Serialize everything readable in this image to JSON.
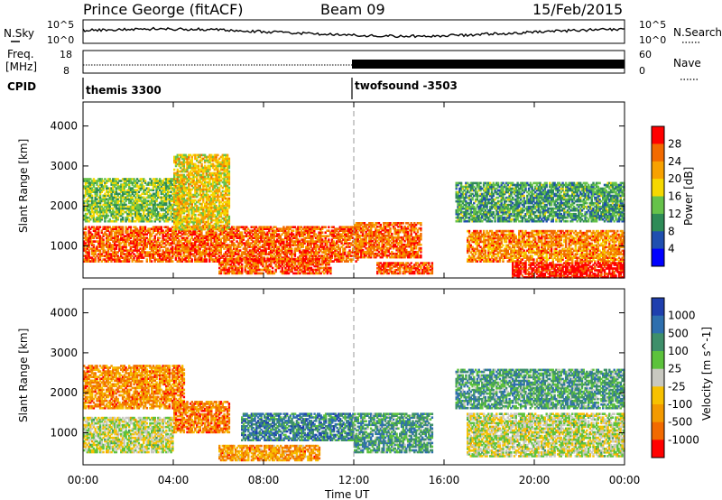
{
  "header": {
    "station": "Prince George (fitACF)",
    "beam": "Beam 09",
    "date": "15/Feb/2015"
  },
  "noise_panel": {
    "left_label": "N.Sky",
    "right_label": "N.Search",
    "y_ticks": [
      "10^5",
      "10^0"
    ],
    "y_ticks_right": [
      "10^5",
      "10^0"
    ]
  },
  "freq_panel": {
    "left_label_1": "Freq.",
    "left_label_2": "[MHz]",
    "right_label": "Nave",
    "y_ticks": [
      "18",
      "8"
    ],
    "y_ticks_right": [
      "60",
      "0"
    ]
  },
  "cpid": {
    "label": "CPID",
    "modes": [
      {
        "name": "themis 3300",
        "start": "00:00"
      },
      {
        "name": "twofsound -3503",
        "start": "12:00"
      }
    ]
  },
  "colors": {
    "power": [
      "#0000ff",
      "#1f4fb0",
      "#2e8b57",
      "#66c24a",
      "#f5d800",
      "#f7a100",
      "#f26a00",
      "#ff0000"
    ],
    "velocity": [
      "#1f3fae",
      "#2e6fae",
      "#3e8f6a",
      "#5cc23c",
      "#c8c8c0",
      "#f7c100",
      "#f39a00",
      "#f26a00",
      "#ff0000"
    ]
  },
  "chart_data": [
    {
      "type": "heatmap",
      "xlabel": "",
      "ylabel": "Slant Range [km]",
      "x_ticks": [
        "00:00",
        "04:00",
        "08:00",
        "12:00",
        "16:00",
        "20:00",
        "00:00"
      ],
      "y_ticks": [
        "1000",
        "2000",
        "3000",
        "4000"
      ],
      "ylim": [
        200,
        4600
      ],
      "colorbar": {
        "label": "Power [dB]",
        "ticks": [
          "4",
          "8",
          "12",
          "16",
          "20",
          "24",
          "28"
        ],
        "range": [
          0,
          32
        ]
      },
      "scatter_regions": [
        {
          "t_start": 0.0,
          "t_end": 12.2,
          "range_min": 600,
          "range_max": 1500,
          "level": 0.82
        },
        {
          "t_start": 0.0,
          "t_end": 4.5,
          "range_min": 1600,
          "range_max": 2700,
          "level": 0.45
        },
        {
          "t_start": 4.0,
          "t_end": 6.5,
          "range_min": 1400,
          "range_max": 3300,
          "level": 0.6
        },
        {
          "t_start": 6.0,
          "t_end": 11.0,
          "range_min": 300,
          "range_max": 700,
          "level": 0.85
        },
        {
          "t_start": 12.0,
          "t_end": 15.0,
          "range_min": 700,
          "range_max": 1600,
          "level": 0.8
        },
        {
          "t_start": 13.0,
          "t_end": 15.5,
          "range_min": 300,
          "range_max": 600,
          "level": 0.85
        },
        {
          "t_start": 17.0,
          "t_end": 24.0,
          "range_min": 600,
          "range_max": 1400,
          "level": 0.75
        },
        {
          "t_start": 19.0,
          "t_end": 24.0,
          "range_min": 200,
          "range_max": 600,
          "level": 0.95
        },
        {
          "t_start": 16.5,
          "t_end": 24.0,
          "range_min": 1600,
          "range_max": 2600,
          "level": 0.35
        }
      ]
    },
    {
      "type": "heatmap",
      "xlabel": "Time UT",
      "ylabel": "Slant Range [km]",
      "x_ticks": [
        "00:00",
        "04:00",
        "08:00",
        "12:00",
        "16:00",
        "20:00",
        "00:00"
      ],
      "y_ticks": [
        "1000",
        "2000",
        "3000",
        "4000"
      ],
      "ylim": [
        200,
        4600
      ],
      "colorbar": {
        "label": "Velocity [m s^-1]",
        "ticks": [
          "1000",
          "500",
          "100",
          "25",
          "-25",
          "-100",
          "-500",
          "-1000"
        ],
        "range": [
          -1000,
          1000
        ]
      },
      "scatter_regions": [
        {
          "t_start": 0.0,
          "t_end": 4.5,
          "range_min": 1600,
          "range_max": 2700,
          "level": 0.75
        },
        {
          "t_start": 0.0,
          "t_end": 4.0,
          "range_min": 500,
          "range_max": 1400,
          "level": 0.5
        },
        {
          "t_start": 4.0,
          "t_end": 6.5,
          "range_min": 1000,
          "range_max": 1800,
          "level": 0.78
        },
        {
          "t_start": 6.0,
          "t_end": 10.5,
          "range_min": 300,
          "range_max": 700,
          "level": 0.72
        },
        {
          "t_start": 7.0,
          "t_end": 12.0,
          "range_min": 800,
          "range_max": 1500,
          "level": 0.22
        },
        {
          "t_start": 12.0,
          "t_end": 15.5,
          "range_min": 500,
          "range_max": 1500,
          "level": 0.3
        },
        {
          "t_start": 17.0,
          "t_end": 24.0,
          "range_min": 400,
          "range_max": 1500,
          "level": 0.5
        },
        {
          "t_start": 16.5,
          "t_end": 24.0,
          "range_min": 1600,
          "range_max": 2600,
          "level": 0.3
        }
      ]
    }
  ]
}
